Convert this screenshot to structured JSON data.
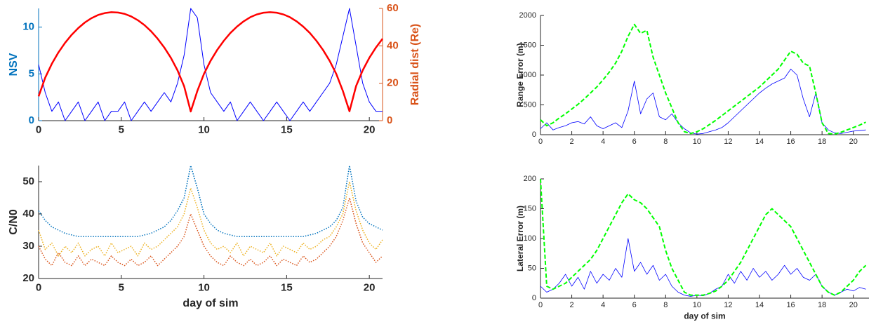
{
  "chart_data": [
    {
      "type": "line",
      "ylabel": "NSV",
      "y2label": "Radial dist (Re)",
      "y_color": "#0072bd",
      "y2_color": "#d95319",
      "x": [
        0,
        0.4,
        0.8,
        1.2,
        1.6,
        2,
        2.4,
        2.8,
        3.2,
        3.6,
        4,
        4.4,
        4.8,
        5.2,
        5.6,
        6,
        6.4,
        6.8,
        7.2,
        7.6,
        8,
        8.4,
        8.8,
        9.2,
        9.6,
        10,
        10.4,
        10.8,
        11.2,
        11.6,
        12,
        12.4,
        12.8,
        13.2,
        13.6,
        14,
        14.4,
        14.8,
        15.2,
        15.6,
        16,
        16.4,
        16.8,
        17.2,
        17.6,
        18,
        18.4,
        18.8,
        19.2,
        19.6,
        20,
        20.4,
        20.8
      ],
      "series": [
        {
          "name": "NSV",
          "color": "#0000ff",
          "style": "solid",
          "width": 1,
          "values": [
            6,
            3,
            1,
            2,
            0,
            1,
            2,
            0,
            1,
            2,
            0,
            1,
            1,
            2,
            0,
            1,
            2,
            1,
            2,
            3,
            2,
            4,
            7,
            12,
            11,
            6,
            3,
            2,
            1,
            2,
            0,
            1,
            2,
            1,
            0,
            1,
            2,
            1,
            0,
            1,
            2,
            1,
            2,
            3,
            4,
            6,
            9,
            12,
            8,
            4,
            2,
            1,
            1
          ]
        },
        {
          "name": "Radial dist (Re)",
          "color": "#ff0000",
          "style": "solid",
          "width": 2.5,
          "axis": "y2",
          "values": [
            13,
            23,
            30.4,
            36.5,
            41.6,
            45.9,
            49.5,
            52.5,
            54.8,
            56.5,
            57.5,
            58,
            57.8,
            57.1,
            55.7,
            53.7,
            51.1,
            47.8,
            43.8,
            39.1,
            33.6,
            26.9,
            18.4,
            4.9,
            15.9,
            25,
            32,
            37.8,
            42.7,
            46.9,
            50.3,
            53.1,
            55.3,
            56.8,
            57.7,
            58,
            57.7,
            56.8,
            55.3,
            53.1,
            50.3,
            46.9,
            42.7,
            37.8,
            32,
            25,
            15.9,
            5,
            18.5,
            26.9,
            33.6,
            39.1,
            43.8
          ]
        }
      ],
      "xlim": [
        0,
        20.8
      ],
      "xticks": [
        0,
        5,
        10,
        15,
        20
      ],
      "ylim": [
        0,
        12
      ],
      "yticks": [
        0,
        5,
        10
      ],
      "y2lim": [
        0,
        60
      ],
      "y2ticks": [
        0,
        20,
        40,
        60
      ]
    },
    {
      "type": "line",
      "ylabel": "C/N0",
      "xlabel": "day of sim",
      "x": [
        0,
        0.4,
        0.8,
        1.2,
        1.6,
        2,
        2.4,
        2.8,
        3.2,
        3.6,
        4,
        4.4,
        4.8,
        5.2,
        5.6,
        6,
        6.4,
        6.8,
        7.2,
        7.6,
        8,
        8.4,
        8.8,
        9.2,
        9.6,
        10,
        10.4,
        10.8,
        11.2,
        11.6,
        12,
        12.4,
        12.8,
        13.2,
        13.6,
        14,
        14.4,
        14.8,
        15.2,
        15.6,
        16,
        16.4,
        16.8,
        17.2,
        17.6,
        18,
        18.4,
        18.8,
        19.2,
        19.6,
        20,
        20.4,
        20.8
      ],
      "series": [
        {
          "color": "#0072bd",
          "style": "dotted",
          "width": 1.5,
          "values": [
            41,
            38,
            36,
            35,
            34,
            33.5,
            33,
            33,
            33,
            33,
            33,
            33,
            33,
            33,
            33,
            33,
            33.5,
            34,
            35,
            36,
            38,
            41,
            45,
            55,
            48,
            40,
            37,
            35,
            34,
            33.5,
            33,
            33,
            33,
            33,
            33,
            33,
            33,
            33,
            33,
            33,
            33,
            33.5,
            34,
            35,
            36,
            38,
            42,
            55,
            44,
            39,
            37,
            36,
            35
          ]
        },
        {
          "color": "#d95319",
          "style": "dotted",
          "width": 1.5,
          "values": [
            30,
            26,
            24,
            28,
            25,
            24,
            27,
            24,
            26,
            25,
            24,
            27,
            25,
            24,
            26,
            24,
            25,
            27,
            24,
            26,
            28,
            30,
            33,
            40,
            35,
            30,
            27,
            25,
            24,
            27,
            25,
            24,
            26,
            24,
            25,
            27,
            24,
            26,
            25,
            24,
            27,
            25,
            26,
            28,
            30,
            33,
            38,
            45,
            37,
            31,
            28,
            25,
            27
          ]
        },
        {
          "color": "#edb120",
          "style": "dotted",
          "width": 1.5,
          "values": [
            35,
            29,
            31,
            27,
            30,
            28,
            31,
            27,
            29,
            30,
            27,
            31,
            28,
            29,
            30,
            27,
            31,
            29,
            30,
            32,
            34,
            36,
            40,
            48,
            42,
            35,
            31,
            29,
            30,
            28,
            31,
            27,
            30,
            29,
            28,
            31,
            27,
            30,
            29,
            28,
            31,
            29,
            30,
            32,
            33,
            36,
            40,
            50,
            41,
            35,
            31,
            29,
            32
          ]
        }
      ],
      "xlim": [
        0,
        20.8
      ],
      "xticks": [
        0,
        5,
        10,
        15,
        20
      ],
      "ylim": [
        20,
        55
      ],
      "yticks": [
        20,
        30,
        40,
        50
      ]
    },
    {
      "type": "line",
      "ylabel": "Range Error (m)",
      "x": [
        0,
        0.4,
        0.8,
        1.2,
        1.6,
        2,
        2.4,
        2.8,
        3.2,
        3.6,
        4,
        4.4,
        4.8,
        5.2,
        5.6,
        6,
        6.4,
        6.8,
        7.2,
        7.6,
        8,
        8.4,
        8.8,
        9.2,
        9.6,
        10,
        10.4,
        10.8,
        11.2,
        11.6,
        12,
        12.4,
        12.8,
        13.2,
        13.6,
        14,
        14.4,
        14.8,
        15.2,
        15.6,
        16,
        16.4,
        16.8,
        17.2,
        17.6,
        18,
        18.4,
        18.8,
        19.2,
        19.6,
        20,
        20.4,
        20.8
      ],
      "series": [
        {
          "color": "#0000ff",
          "style": "solid",
          "width": 0.8,
          "values": [
            100,
            200,
            80,
            120,
            150,
            200,
            220,
            180,
            300,
            150,
            100,
            150,
            200,
            120,
            400,
            900,
            350,
            600,
            700,
            300,
            250,
            350,
            200,
            100,
            30,
            10,
            20,
            50,
            80,
            120,
            200,
            300,
            400,
            500,
            600,
            700,
            780,
            850,
            900,
            950,
            1100,
            1000,
            600,
            300,
            700,
            200,
            80,
            30,
            20,
            40,
            60,
            70,
            80
          ]
        },
        {
          "color": "#00ff00",
          "style": "dashed",
          "width": 2,
          "values": [
            250,
            150,
            200,
            280,
            350,
            430,
            510,
            600,
            700,
            800,
            920,
            1050,
            1200,
            1400,
            1650,
            1850,
            1700,
            1750,
            1300,
            1000,
            700,
            450,
            200,
            50,
            20,
            50,
            100,
            170,
            240,
            320,
            400,
            480,
            560,
            640,
            720,
            800,
            900,
            1000,
            1100,
            1250,
            1400,
            1350,
            1200,
            1150,
            700,
            200,
            20,
            10,
            40,
            80,
            120,
            160,
            210
          ]
        }
      ],
      "xlim": [
        0,
        21
      ],
      "xticks": [
        0,
        2,
        4,
        6,
        8,
        10,
        12,
        14,
        16,
        18,
        20
      ],
      "ylim": [
        0,
        2000
      ],
      "yticks": [
        0,
        500,
        1000,
        1500,
        2000
      ]
    },
    {
      "type": "line",
      "ylabel": "Lateral Error (m)",
      "xlabel": "day of sim",
      "x": [
        0,
        0.4,
        0.8,
        1.2,
        1.6,
        2,
        2.4,
        2.8,
        3.2,
        3.6,
        4,
        4.4,
        4.8,
        5.2,
        5.6,
        6,
        6.4,
        6.8,
        7.2,
        7.6,
        8,
        8.4,
        8.8,
        9.2,
        9.6,
        10,
        10.4,
        10.8,
        11.2,
        11.6,
        12,
        12.4,
        12.8,
        13.2,
        13.6,
        14,
        14.4,
        14.8,
        15.2,
        15.6,
        16,
        16.4,
        16.8,
        17.2,
        17.6,
        18,
        18.4,
        18.8,
        19.2,
        19.6,
        20,
        20.4,
        20.8
      ],
      "series": [
        {
          "color": "#0000ff",
          "style": "solid",
          "width": 0.8,
          "values": [
            20,
            10,
            15,
            25,
            40,
            20,
            35,
            15,
            45,
            25,
            40,
            30,
            50,
            35,
            100,
            45,
            60,
            40,
            55,
            30,
            40,
            20,
            10,
            5,
            3,
            5,
            4,
            8,
            15,
            20,
            40,
            25,
            45,
            30,
            50,
            35,
            45,
            30,
            40,
            55,
            40,
            50,
            35,
            30,
            40,
            20,
            10,
            5,
            10,
            15,
            12,
            18,
            15
          ]
        },
        {
          "color": "#00ff00",
          "style": "dashed",
          "width": 2,
          "values": [
            200,
            20,
            15,
            20,
            25,
            35,
            45,
            55,
            65,
            80,
            100,
            120,
            140,
            160,
            175,
            165,
            160,
            150,
            135,
            120,
            80,
            50,
            30,
            10,
            5,
            5,
            5,
            8,
            12,
            20,
            30,
            45,
            60,
            80,
            100,
            120,
            140,
            150,
            140,
            130,
            120,
            100,
            80,
            60,
            40,
            20,
            10,
            5,
            10,
            20,
            30,
            45,
            55
          ]
        }
      ],
      "xlim": [
        0,
        21
      ],
      "xticks": [
        0,
        2,
        4,
        6,
        8,
        10,
        12,
        14,
        16,
        18,
        20
      ],
      "ylim": [
        0,
        200
      ],
      "yticks": [
        0,
        50,
        100,
        150,
        200
      ]
    }
  ]
}
